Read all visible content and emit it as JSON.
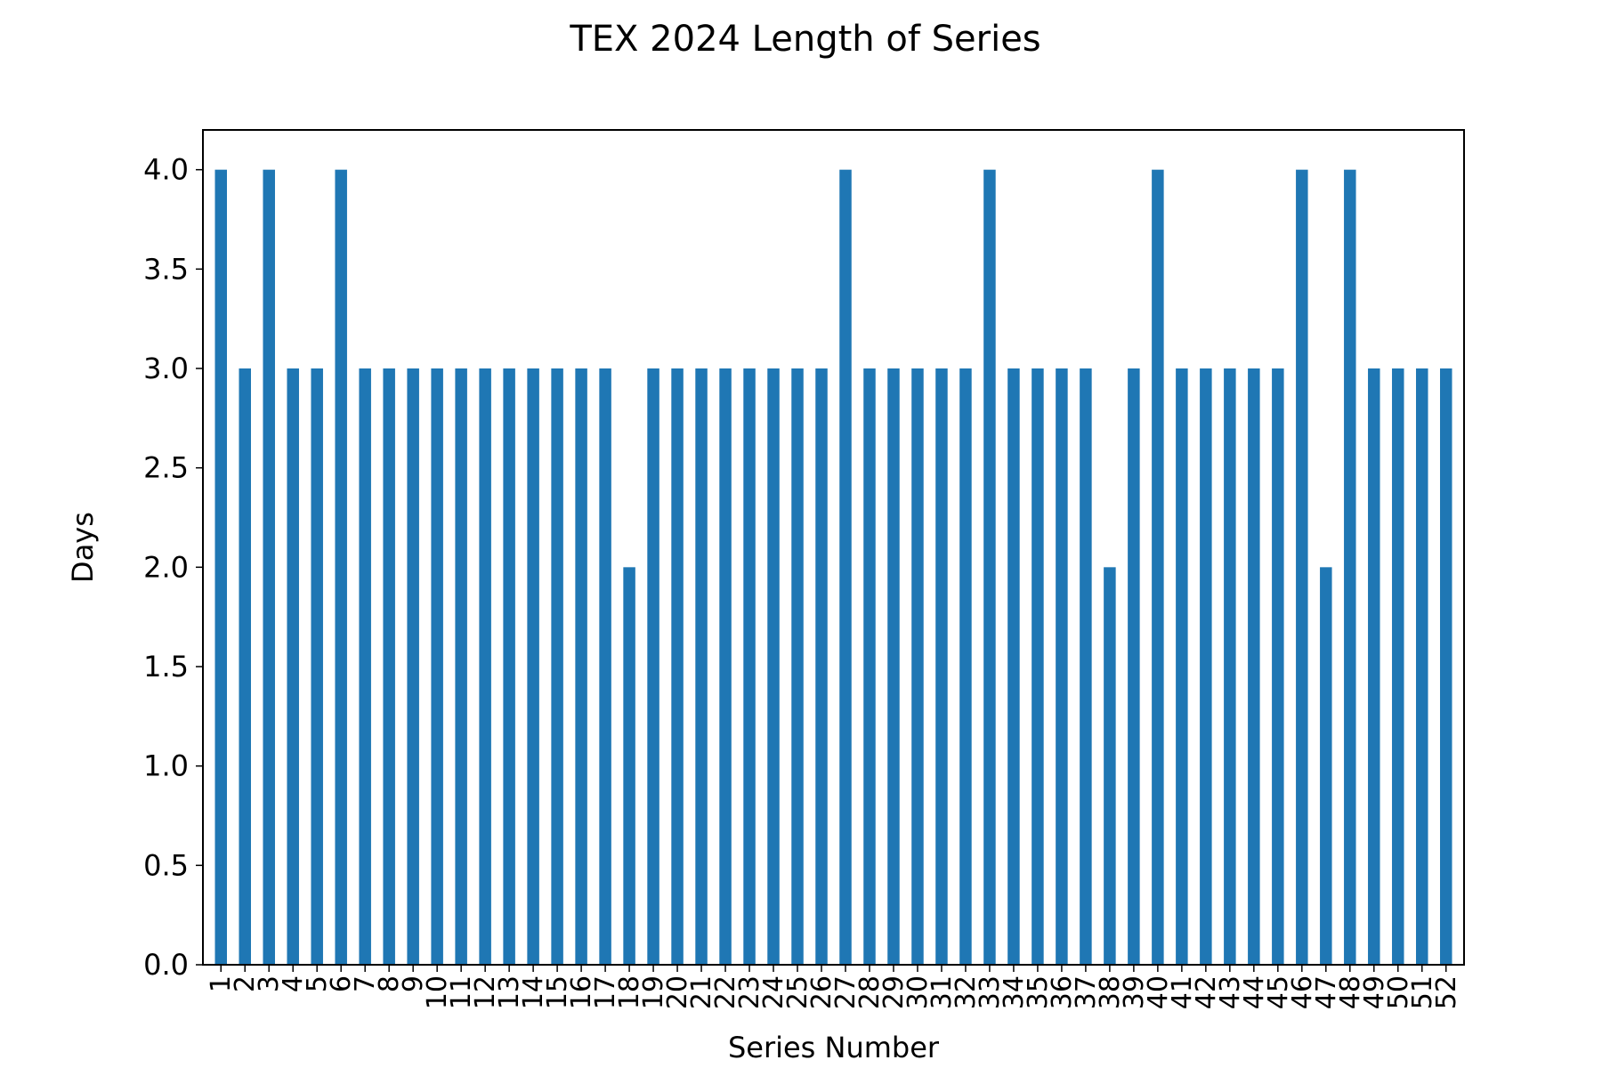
{
  "chart_data": {
    "type": "bar",
    "title": "TEX 2024 Length of Series",
    "xlabel": "Series Number",
    "ylabel": "Days",
    "ylim": [
      0,
      4.2
    ],
    "yticks": [
      0.0,
      0.5,
      1.0,
      1.5,
      2.0,
      2.5,
      3.0,
      3.5,
      4.0
    ],
    "ytick_labels": [
      "0.0",
      "0.5",
      "1.0",
      "1.5",
      "2.0",
      "2.5",
      "3.0",
      "3.5",
      "4.0"
    ],
    "grid": false,
    "bar_color": "#1f77b4",
    "categories": [
      "1",
      "2",
      "3",
      "4",
      "5",
      "6",
      "7",
      "8",
      "9",
      "10",
      "11",
      "12",
      "13",
      "14",
      "15",
      "16",
      "17",
      "18",
      "19",
      "20",
      "21",
      "22",
      "23",
      "24",
      "25",
      "26",
      "27",
      "28",
      "29",
      "30",
      "31",
      "32",
      "33",
      "34",
      "35",
      "36",
      "37",
      "38",
      "39",
      "40",
      "41",
      "42",
      "43",
      "44",
      "45",
      "46",
      "47",
      "48",
      "49",
      "50",
      "51",
      "52"
    ],
    "values": [
      4,
      3,
      4,
      3,
      3,
      4,
      3,
      3,
      3,
      3,
      3,
      3,
      3,
      3,
      3,
      3,
      3,
      2,
      3,
      3,
      3,
      3,
      3,
      3,
      3,
      3,
      4,
      3,
      3,
      3,
      3,
      3,
      4,
      3,
      3,
      3,
      3,
      2,
      3,
      4,
      3,
      3,
      3,
      3,
      3,
      4,
      2,
      4,
      3,
      3,
      3,
      3
    ]
  }
}
